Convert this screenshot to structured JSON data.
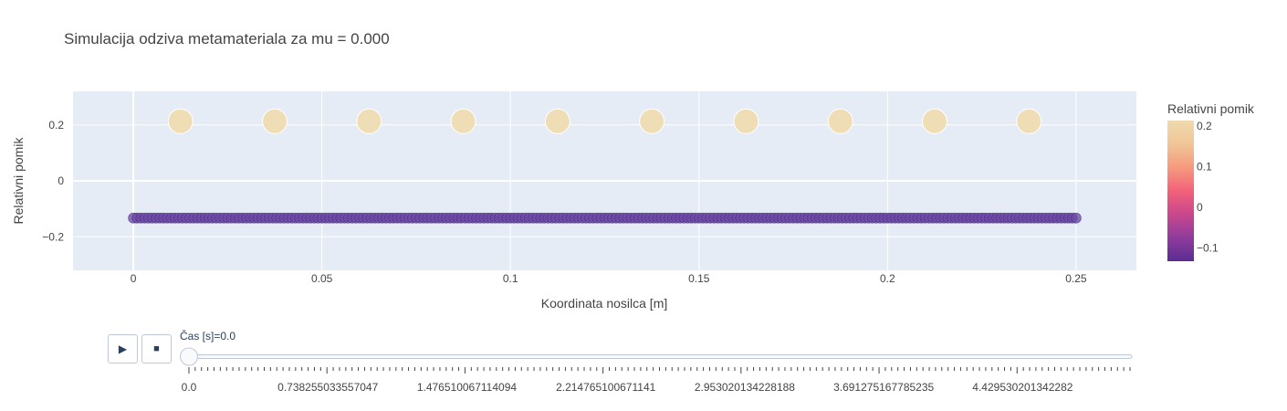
{
  "title": "Simulacija odziva metamateriala za mu = 0.000",
  "chart_data": {
    "type": "scatter",
    "title": "Simulacija odziva metamateriala za mu = 0.000",
    "xlabel": "Koordinata nosilca [m]",
    "ylabel": "Relativni pomik",
    "xlim": [
      -0.016,
      0.266
    ],
    "ylim": [
      -0.32,
      0.32
    ],
    "x_ticks": [
      0,
      0.05,
      0.1,
      0.15,
      0.2,
      0.25
    ],
    "x_tick_labels": [
      "0",
      "0.05",
      "0.1",
      "0.15",
      "0.2",
      "0.25"
    ],
    "y_ticks": [
      -0.2,
      0,
      0.2
    ],
    "y_tick_labels": [
      "−0.2",
      "0",
      "0.2"
    ],
    "grid": true,
    "series": [
      {
        "x_start": 0,
        "x_end": 0.25,
        "count": 251,
        "y": -0.133
      },
      {
        "x": [
          0.0125,
          0.0375,
          0.0625,
          0.0875,
          0.1125,
          0.1375,
          0.1625,
          0.1875,
          0.2125,
          0.2375
        ],
        "y": [
          0.213,
          0.213,
          0.213,
          0.213,
          0.213,
          0.213,
          0.213,
          0.213,
          0.213,
          0.213
        ]
      }
    ],
    "colorbar": {
      "title": "Relativni pomik",
      "colorscale": "plasma-like (purple to beige)",
      "cmin": -0.133,
      "cmax": 0.213,
      "ticks": [
        -0.1,
        0,
        0.1,
        0.2
      ],
      "tick_labels": [
        "−0.1",
        "0",
        "0.1",
        "0.2"
      ],
      "colors": [
        "#5a2d91",
        "#8e3c9c",
        "#c9478d",
        "#f2627a",
        "#f59a7e",
        "#f0c697",
        "#efd9ae"
      ]
    }
  },
  "slider": {
    "current_label": "Čas [s]=0.0",
    "value": 0.0,
    "tick_labels": [
      "0.0",
      "0.738255033557047",
      "1.476510067114094",
      "2.214765100671141",
      "2.953020134228188",
      "3.691275167785235",
      "4.429530201342282"
    ]
  },
  "controls": {
    "play_symbol": "▶",
    "stop_symbol": "■"
  },
  "colors": {
    "plot_bg": "#e5ecf6",
    "grid": "#ffffff",
    "beam_dot": "#6a47a3",
    "resonator_dot": "#efddb5"
  }
}
